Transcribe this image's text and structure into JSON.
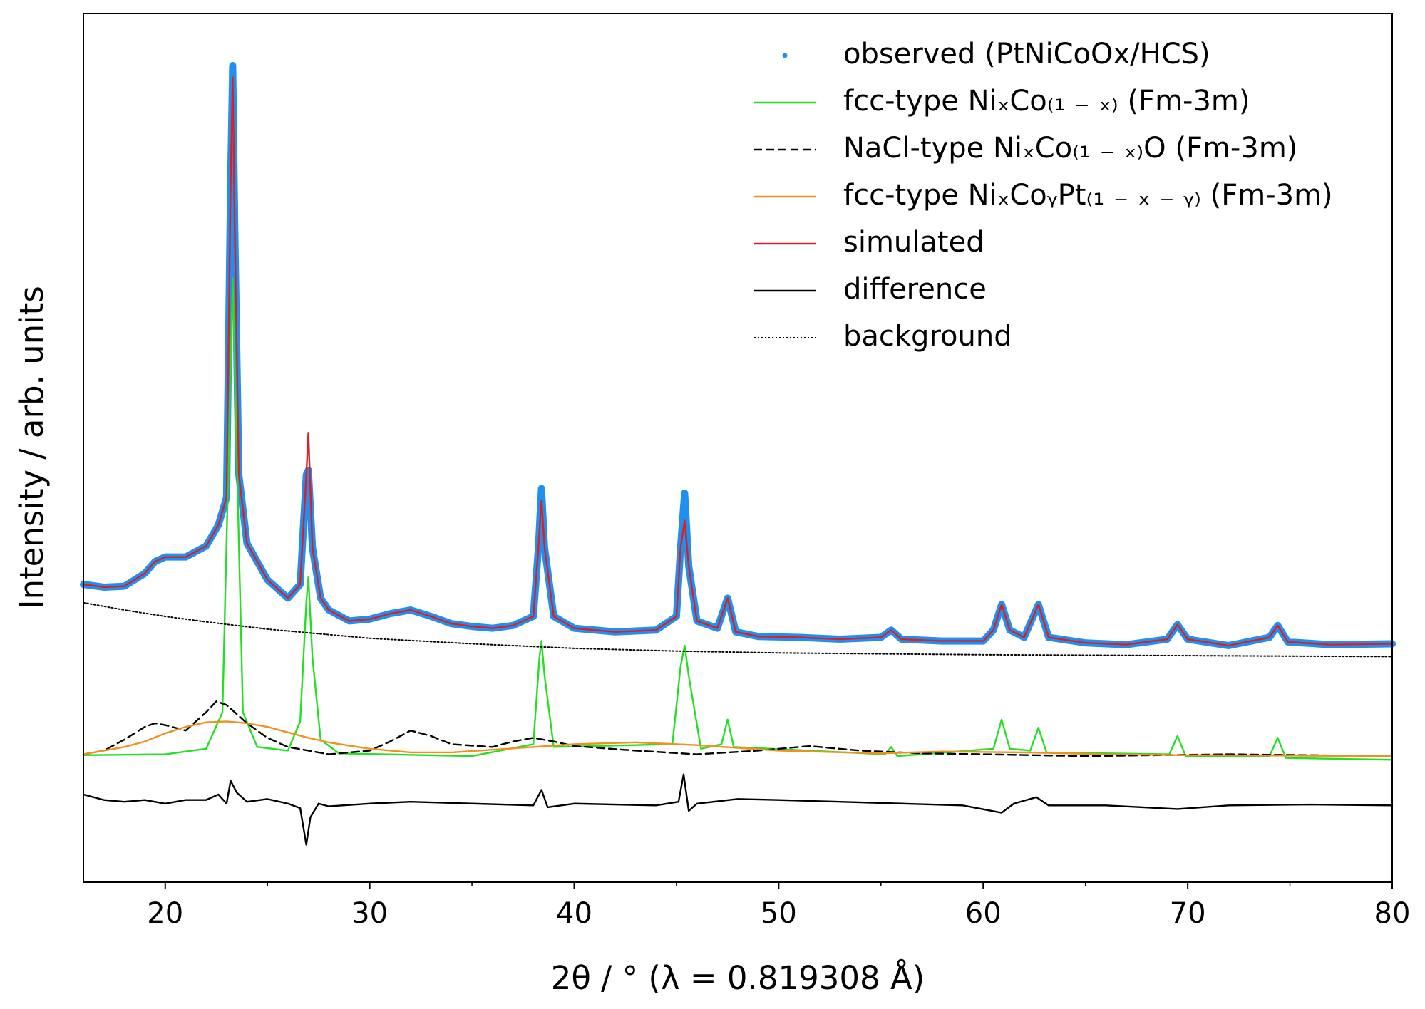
{
  "chart_data": {
    "type": "line",
    "xlabel": "2θ / °  (λ = 0.819308 Å)",
    "ylabel": "Intensity / arb. units",
    "xlim": [
      16,
      80
    ],
    "xticks": [
      20,
      30,
      40,
      50,
      60,
      70,
      80
    ],
    "xminorticks": [
      25,
      35,
      45,
      55,
      65,
      75
    ],
    "ylim": [
      0,
      951
    ],
    "legend": "upper right",
    "series": [
      {
        "name": "observed (PtNiCoOx/HCS)",
        "color": "#2090f0",
        "linestyle": "points",
        "x": [
          16,
          17,
          18,
          19,
          19.5,
          20,
          21,
          22,
          22.6,
          23,
          23.2,
          23.3,
          23.4,
          23.6,
          24,
          25,
          26,
          26.6,
          26.9,
          27.0,
          27.2,
          27.6,
          28,
          29,
          30,
          31,
          32,
          33,
          34,
          35,
          36,
          37,
          38,
          38.25,
          38.4,
          38.55,
          39,
          40,
          42,
          44,
          45,
          45.2,
          45.4,
          45.6,
          46,
          47,
          47.5,
          47.9,
          49,
          51,
          53,
          55,
          55.5,
          56,
          58,
          60,
          60.5,
          60.9,
          61.3,
          62,
          62.7,
          63.2,
          65,
          67,
          69,
          69.5,
          70,
          72,
          74,
          74.4,
          74.9,
          77,
          80
        ],
        "values": [
          326,
          323,
          324,
          338,
          351,
          356,
          356,
          368,
          391,
          421,
          766,
          894,
          716,
          446,
          371,
          331,
          311,
          326,
          446,
          451,
          366,
          311,
          298,
          286,
          288,
          294,
          298,
          291,
          283,
          280,
          278,
          281,
          291,
          366,
          431,
          366,
          291,
          278,
          274,
          276,
          291,
          366,
          426,
          346,
          286,
          278,
          311,
          274,
          269,
          268,
          266,
          268,
          276,
          266,
          264,
          264,
          276,
          304,
          276,
          268,
          304,
          268,
          262,
          260,
          266,
          282,
          266,
          259,
          268,
          281,
          263,
          260,
          261
        ]
      },
      {
        "name": "fcc-type NiₓCo₍₁ ₋ ₓ₎ (Fm-3m)",
        "color": "#22e022",
        "linestyle": "solid",
        "x": [
          16,
          20,
          22,
          22.8,
          23.1,
          23.3,
          23.5,
          23.8,
          24.5,
          26,
          26.6,
          26.9,
          27.0,
          27.2,
          27.6,
          28.5,
          35,
          38.0,
          38.3,
          38.4,
          38.55,
          39,
          44.8,
          45.2,
          45.4,
          45.6,
          46.2,
          47.2,
          47.5,
          47.8,
          55.2,
          55.5,
          55.8,
          60.5,
          60.9,
          61.3,
          62.3,
          62.7,
          63.1,
          69.1,
          69.5,
          69.9,
          74,
          74.4,
          74.8,
          80
        ],
        "values": [
          139,
          140,
          146,
          186,
          466,
          661,
          466,
          186,
          148,
          144,
          176,
          306,
          334,
          246,
          156,
          141,
          138,
          151,
          246,
          264,
          226,
          148,
          151,
          236,
          259,
          226,
          146,
          151,
          178,
          148,
          140,
          148,
          138,
          146,
          178,
          146,
          144,
          169,
          142,
          140,
          160,
          138,
          138,
          158,
          136,
          134
        ]
      },
      {
        "name": "NaCl-type NiₓCo₍₁ ₋ ₓ₎O (Fm-3m)",
        "color": "#000000",
        "linestyle": "dashed",
        "x": [
          16,
          17,
          18,
          19,
          19.5,
          20,
          21,
          22,
          22.5,
          23,
          24,
          25,
          26,
          28,
          30,
          31,
          32,
          33,
          34,
          36,
          37,
          38,
          39,
          40,
          43,
          46,
          49,
          51.5,
          54,
          57,
          60,
          65,
          72,
          80
        ],
        "values": [
          140,
          144,
          156,
          170,
          174,
          172,
          166,
          186,
          198,
          194,
          174,
          158,
          148,
          140,
          144,
          154,
          166,
          160,
          151,
          148,
          154,
          158,
          154,
          149,
          144,
          140,
          144,
          149,
          144,
          141,
          140,
          138,
          140,
          138
        ]
      },
      {
        "name": "fcc-type NiₓCoᵧPt₍₁ ₋ ₓ ₋ ᵧ₎ (Fm-3m)",
        "color": "#f0901e",
        "linestyle": "solid",
        "x": [
          16,
          18,
          19,
          20,
          21,
          22,
          23,
          24,
          25,
          26,
          27,
          28,
          30,
          32,
          34,
          36,
          38,
          40,
          43,
          46,
          50,
          55,
          58,
          62,
          66,
          70,
          80
        ],
        "values": [
          140,
          148,
          154,
          163,
          170,
          175,
          176,
          174,
          170,
          164,
          158,
          153,
          146,
          142,
          142,
          145,
          148,
          151,
          153,
          150,
          144,
          141,
          143,
          142,
          140,
          139,
          138
        ]
      },
      {
        "name": "simulated",
        "color": "#e01e1e",
        "linestyle": "solid",
        "x": [
          16,
          17,
          18,
          19,
          19.5,
          20,
          21,
          22,
          22.6,
          23,
          23.2,
          23.3,
          23.4,
          23.6,
          24,
          25,
          26,
          26.6,
          26.9,
          27.0,
          27.2,
          27.6,
          28,
          29,
          30,
          31,
          32,
          33,
          34,
          35,
          36,
          37,
          38,
          38.25,
          38.4,
          38.55,
          39,
          40,
          42,
          44,
          45,
          45.2,
          45.4,
          45.6,
          46,
          47,
          47.5,
          47.9,
          49,
          51,
          53,
          55,
          55.5,
          56,
          58,
          60,
          60.5,
          60.9,
          61.3,
          62,
          62.7,
          63.2,
          65,
          67,
          69,
          69.5,
          70,
          72,
          74,
          74.4,
          74.9,
          77,
          80
        ],
        "values": [
          326,
          323,
          324,
          338,
          351,
          356,
          356,
          368,
          391,
          421,
          766,
          881,
          716,
          446,
          371,
          331,
          311,
          326,
          446,
          492,
          366,
          311,
          298,
          286,
          288,
          294,
          298,
          291,
          283,
          280,
          278,
          281,
          291,
          366,
          418,
          366,
          291,
          278,
          274,
          276,
          291,
          366,
          396,
          346,
          286,
          278,
          311,
          274,
          269,
          268,
          266,
          268,
          276,
          266,
          264,
          264,
          276,
          304,
          276,
          268,
          304,
          268,
          262,
          260,
          266,
          282,
          266,
          259,
          268,
          281,
          263,
          260,
          261
        ]
      },
      {
        "name": "difference",
        "color": "#000000",
        "linestyle": "solid",
        "x": [
          16,
          17,
          18,
          19,
          20,
          21,
          22,
          22.6,
          23.0,
          23.2,
          23.5,
          24,
          25,
          26,
          26.6,
          26.9,
          27.1,
          27.5,
          28,
          30,
          32,
          35,
          38,
          38.4,
          38.7,
          40,
          44,
          45.1,
          45.35,
          45.6,
          46,
          48,
          50,
          53,
          56,
          59,
          60.9,
          61.5,
          62.6,
          63.2,
          66,
          69.5,
          72,
          76,
          80
        ],
        "values": [
          96,
          90,
          88,
          90,
          86,
          90,
          90,
          96,
          86,
          111,
          98,
          88,
          91,
          86,
          81,
          41,
          71,
          86,
          83,
          86,
          88,
          86,
          84,
          101,
          82,
          86,
          84,
          88,
          118,
          78,
          86,
          91,
          90,
          88,
          86,
          84,
          76,
          86,
          93,
          84,
          84,
          80,
          84,
          85,
          84
        ]
      },
      {
        "name": "background",
        "color": "#000000",
        "linestyle": "dotted",
        "x": [
          16,
          18,
          20,
          22,
          25,
          28,
          30,
          35,
          40,
          45,
          50,
          55,
          60,
          70,
          80
        ],
        "values": [
          306,
          298,
          291,
          285,
          277,
          271,
          267,
          261,
          256,
          253,
          251,
          250,
          249,
          248,
          247
        ]
      }
    ]
  }
}
